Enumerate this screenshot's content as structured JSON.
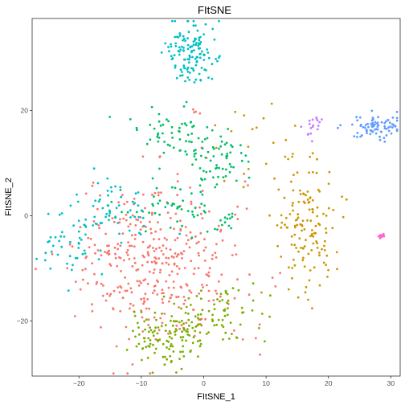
{
  "chart_data": {
    "type": "scatter",
    "title": "FItSNE",
    "xlabel": "FItSNE_1",
    "ylabel": "FItSNE_2",
    "xlim": [
      -27.5,
      31.5
    ],
    "ylim": [
      -30.5,
      37.5
    ],
    "xticks": [
      -20,
      -10,
      0,
      10,
      20,
      30
    ],
    "yticks": [
      -20,
      0,
      20
    ],
    "xtick_labels": [
      "−20",
      "−10",
      "0",
      "10",
      "20",
      "30"
    ],
    "ytick_labels": [
      "−20",
      "0",
      "20"
    ],
    "grid": false,
    "legend": "none",
    "clusters": [
      {
        "color": "#F8766D",
        "center": [
          -7,
          -9
        ],
        "spread": [
          6.5,
          7.5
        ],
        "n": 380,
        "count_estimated": true
      },
      {
        "color": "#F8766D",
        "center": [
          -1,
          20
        ],
        "spread": [
          0.6,
          0.5
        ],
        "n": 4,
        "count_estimated": true
      },
      {
        "color": "#CD9600",
        "center": [
          16,
          -1
        ],
        "spread": [
          2.8,
          6.5
        ],
        "n": 140,
        "count_estimated": true
      },
      {
        "color": "#CD9600",
        "center": [
          9,
          12
        ],
        "spread": [
          3.5,
          5
        ],
        "n": 20,
        "count_estimated": true
      },
      {
        "color": "#7CAE00",
        "center": [
          -6,
          -23
        ],
        "spread": [
          3.2,
          3
        ],
        "n": 120,
        "count_estimated": true
      },
      {
        "color": "#7CAE00",
        "center": [
          3,
          -19
        ],
        "spread": [
          3.5,
          2.5
        ],
        "n": 70,
        "count_estimated": true
      },
      {
        "color": "#00BE67",
        "center": [
          -4,
          16
        ],
        "spread": [
          4,
          2.5
        ],
        "n": 60,
        "count_estimated": true
      },
      {
        "color": "#00BE67",
        "center": [
          2,
          11
        ],
        "spread": [
          3,
          3
        ],
        "n": 60,
        "count_estimated": true
      },
      {
        "color": "#00BE67",
        "center": [
          -6,
          1
        ],
        "spread": [
          4,
          2.5
        ],
        "n": 50,
        "count_estimated": true
      },
      {
        "color": "#00BE67",
        "center": [
          4,
          -1
        ],
        "spread": [
          0.8,
          1.2
        ],
        "n": 12,
        "count_estimated": true
      },
      {
        "color": "#00BFC4",
        "center": [
          -2,
          31
        ],
        "spread": [
          2,
          2.8
        ],
        "n": 130,
        "count_estimated": true
      },
      {
        "color": "#00BFC4",
        "center": [
          -14,
          1
        ],
        "spread": [
          3.5,
          3
        ],
        "n": 60,
        "count_estimated": true
      },
      {
        "color": "#00BFC4",
        "center": [
          -21,
          -6
        ],
        "spread": [
          2.5,
          3
        ],
        "n": 40,
        "count_estimated": true
      },
      {
        "color": "#619CFF",
        "center": [
          27.5,
          17
        ],
        "spread": [
          2,
          1.2
        ],
        "n": 80,
        "count_estimated": true
      },
      {
        "color": "#C77CFF",
        "center": [
          17.5,
          17
        ],
        "spread": [
          1,
          1.3
        ],
        "n": 18,
        "count_estimated": true
      },
      {
        "color": "#FF61CC",
        "center": [
          28.5,
          -3.8
        ],
        "spread": [
          0.3,
          0.2
        ],
        "n": 12,
        "count_estimated": true
      }
    ]
  }
}
